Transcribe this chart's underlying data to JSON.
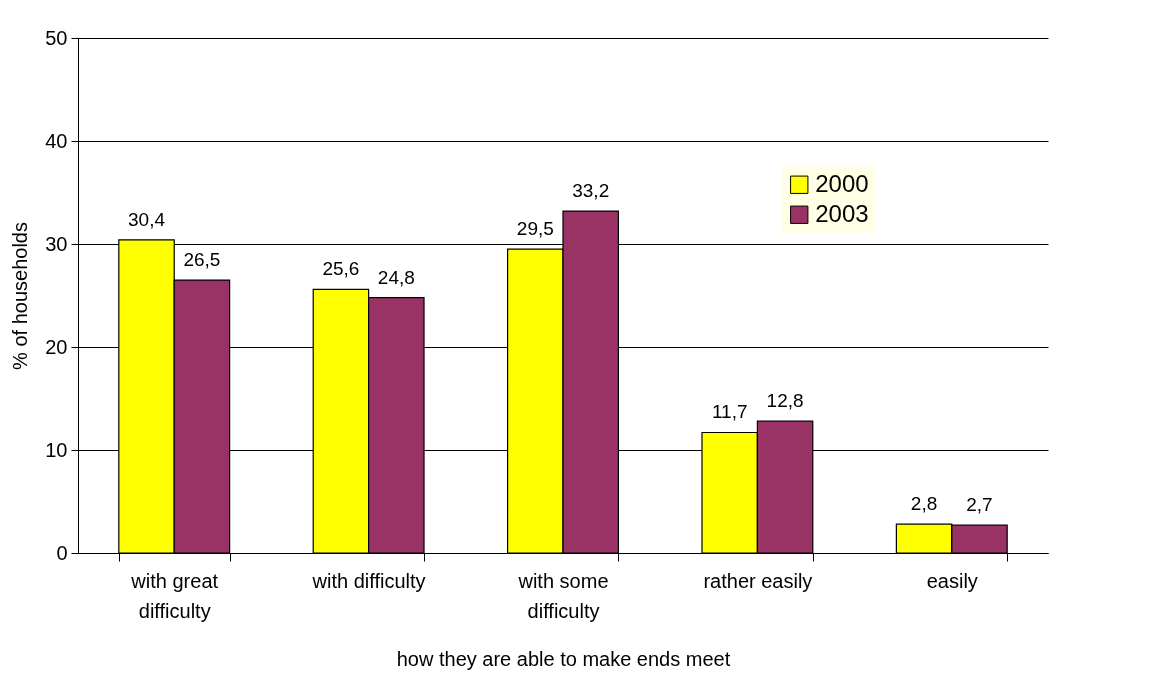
{
  "chart_data": {
    "type": "bar",
    "xlabel": "how they are able to make ends meet",
    "ylabel": "% of households",
    "categories": [
      "with great difficulty",
      "with difficulty",
      "with some difficulty",
      "rather easily",
      "easily"
    ],
    "series": [
      {
        "name": "2000",
        "color": "#ffff00",
        "values": [
          30.4,
          25.6,
          29.5,
          11.7,
          2.8
        ],
        "value_labels": [
          "30,4",
          "25,6",
          "29,5",
          "11,7",
          "2,8"
        ]
      },
      {
        "name": "2003",
        "color": "#993366",
        "values": [
          26.5,
          24.8,
          33.2,
          12.8,
          2.7
        ],
        "value_labels": [
          "26,5",
          "24,8",
          "33,2",
          "12,8",
          "2,7"
        ]
      }
    ],
    "ylim": [
      0,
      50
    ],
    "yticks": [
      0,
      10,
      20,
      30,
      40,
      50
    ],
    "grid": "y",
    "legend": "top right"
  }
}
